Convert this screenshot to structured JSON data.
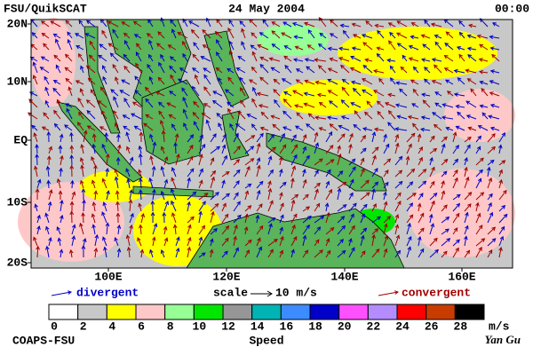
{
  "header": {
    "title": "FSU/QuikSCAT",
    "date": "24 May 2004",
    "time": "00:00"
  },
  "map": {
    "lat_labels": [
      "20N",
      "10N",
      "EQ",
      "10S",
      "20S"
    ],
    "lon_labels": [
      "100E",
      "120E",
      "140E",
      "160E"
    ]
  },
  "legend": {
    "divergent": "divergent",
    "scale": "scale",
    "scale_value": "10 m/s",
    "convergent": "convergent",
    "divergent_color": "#0000c8",
    "convergent_color": "#a00000"
  },
  "colorbar": {
    "ticks": [
      0,
      2,
      4,
      6,
      8,
      10,
      12,
      14,
      16,
      18,
      20,
      22,
      24,
      26,
      28
    ],
    "colors": [
      "#ffffff",
      "#c8c8c8",
      "#ffff00",
      "#ffc8c8",
      "#96ff96",
      "#00e600",
      "#969696",
      "#00b4b4",
      "#3c8cff",
      "#0000c8",
      "#ff50ff",
      "#b48cff",
      "#ff0000",
      "#c83c00",
      "#000000"
    ],
    "unit": "m/s",
    "label": "Speed"
  },
  "footer": {
    "left": "COAPS-FSU",
    "right": "Yan Gu"
  }
}
